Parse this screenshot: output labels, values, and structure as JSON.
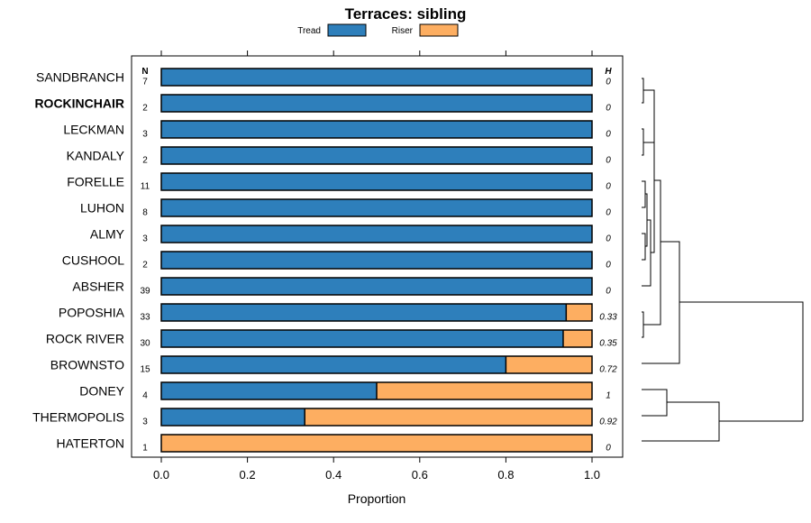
{
  "chart_data": {
    "type": "bar",
    "orientation": "horizontal",
    "stacked": true,
    "title": "Terraces: sibling",
    "xlabel": "Proportion",
    "xlim": [
      0,
      1
    ],
    "xticks": [
      "0.0",
      "0.2",
      "0.4",
      "0.6",
      "0.8",
      "1.0"
    ],
    "legend": [
      {
        "name": "Tread",
        "color": "#2e7fbb"
      },
      {
        "name": "Riser",
        "color": "#fdae61"
      }
    ],
    "n_header": "N",
    "h_header": "H",
    "highlighted": "ROCKINCHAIR",
    "categories": [
      "SANDBRANCH",
      "ROCKINCHAIR",
      "LECKMAN",
      "KANDALY",
      "FORELLE",
      "LUHON",
      "ALMY",
      "CUSHOOL",
      "ABSHER",
      "POPOSHIA",
      "ROCK RIVER",
      "BROWNSTO",
      "DONEY",
      "THERMOPOLIS",
      "HATERTON"
    ],
    "n": [
      "7",
      "2",
      "3",
      "2",
      "11",
      "8",
      "3",
      "2",
      "39",
      "33",
      "30",
      "15",
      "4",
      "3",
      "1"
    ],
    "h": [
      "0",
      "0",
      "0",
      "0",
      "0",
      "0",
      "0",
      "0",
      "0",
      "0.33",
      "0.35",
      "0.72",
      "1",
      "0.92",
      "0"
    ],
    "series": [
      {
        "name": "Tread",
        "values": [
          1,
          1,
          1,
          1,
          1,
          1,
          1,
          1,
          1,
          0.94,
          0.933,
          0.8,
          0.5,
          0.333,
          0
        ]
      },
      {
        "name": "Riser",
        "values": [
          0,
          0,
          0,
          0,
          0,
          0,
          0,
          0,
          0,
          0.06,
          0.067,
          0.2,
          0.5,
          0.667,
          1
        ]
      }
    ]
  }
}
